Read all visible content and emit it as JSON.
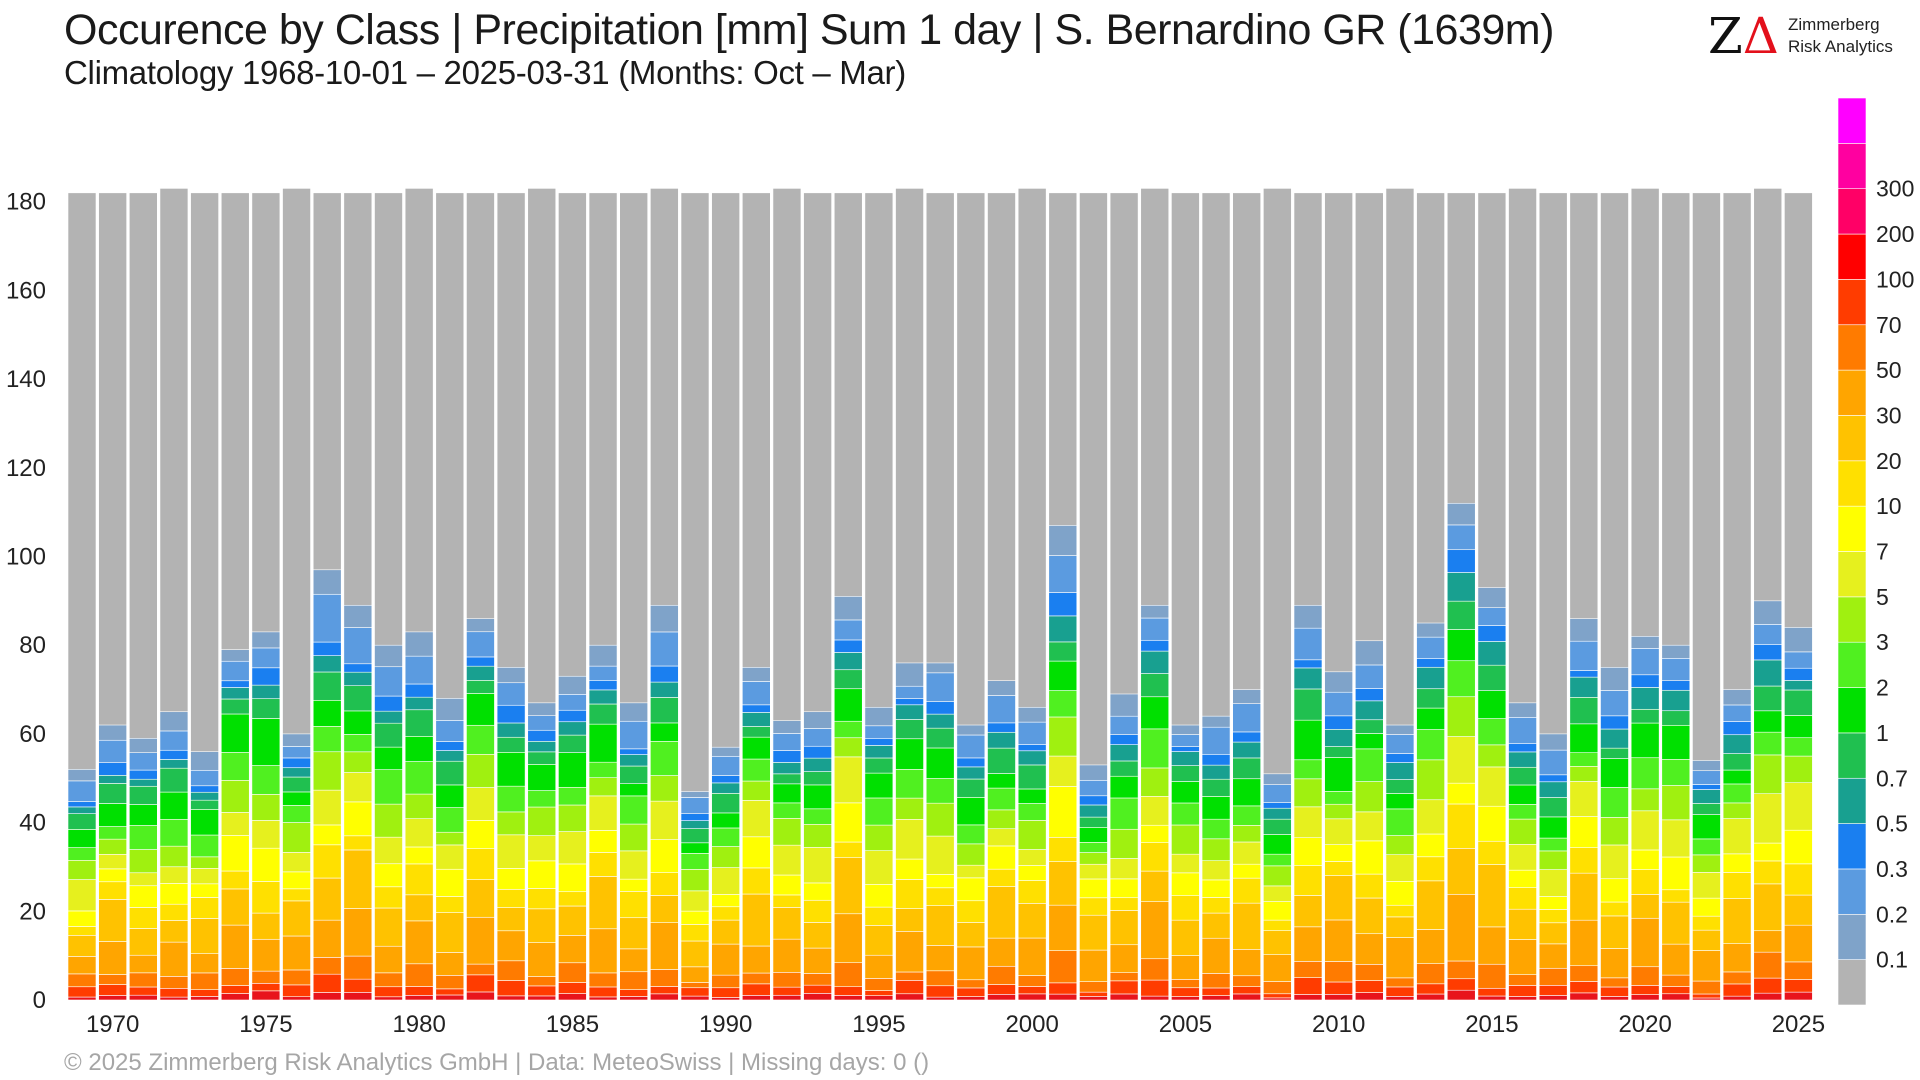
{
  "header": {
    "title": "Occurence by Class | Precipitation [mm] Sum 1 day | S. Bernardino  GR (1639m)",
    "subtitle": "Climatology 1968-10-01 – 2025-03-31 (Months: Oct – Mar)"
  },
  "logo": {
    "mark": "ZΔ",
    "line1": "Zimmerberg",
    "line2": "Risk Analytics"
  },
  "footer": {
    "text": "©  2025 Zimmerberg Risk Analytics GmbH | Data: MeteoSwiss | Missing days: 0 ()"
  },
  "colors": {
    "background_bar": "#b3b3b3",
    "axis_text": "#222222"
  },
  "chart_data": {
    "type": "bar",
    "stacked": true,
    "x": [
      1969,
      1970,
      1971,
      1972,
      1973,
      1974,
      1975,
      1976,
      1977,
      1978,
      1979,
      1980,
      1981,
      1982,
      1983,
      1984,
      1985,
      1986,
      1987,
      1988,
      1989,
      1990,
      1991,
      1992,
      1993,
      1994,
      1995,
      1996,
      1997,
      1998,
      1999,
      2000,
      2001,
      2002,
      2003,
      2004,
      2005,
      2006,
      2007,
      2008,
      2009,
      2010,
      2011,
      2012,
      2013,
      2014,
      2015,
      2016,
      2017,
      2018,
      2019,
      2020,
      2021,
      2022,
      2023,
      2024,
      2025
    ],
    "x_ticks": [
      1970,
      1975,
      1980,
      1985,
      1990,
      1995,
      2000,
      2005,
      2010,
      2015,
      2020,
      2025
    ],
    "ylim": [
      0,
      183
    ],
    "y_ticks": [
      0,
      20,
      40,
      60,
      80,
      100,
      120,
      140,
      160,
      180
    ],
    "total_days": [
      182,
      182,
      182,
      183,
      182,
      182,
      182,
      183,
      182,
      182,
      182,
      183,
      182,
      182,
      182,
      183,
      182,
      182,
      182,
      183,
      182,
      182,
      182,
      183,
      182,
      182,
      182,
      183,
      182,
      182,
      182,
      183,
      182,
      182,
      182,
      183,
      182,
      182,
      182,
      183,
      182,
      182,
      182,
      183,
      182,
      182,
      182,
      183,
      182,
      182,
      182,
      183,
      182,
      182,
      182,
      183,
      182
    ],
    "wet_days": [
      52,
      62,
      59,
      65,
      56,
      79,
      83,
      60,
      97,
      89,
      80,
      83,
      68,
      86,
      75,
      67,
      73,
      80,
      67,
      89,
      47,
      57,
      75,
      63,
      65,
      91,
      66,
      76,
      76,
      62,
      72,
      66,
      107,
      53,
      69,
      89,
      62,
      64,
      70,
      51,
      89,
      74,
      81,
      62,
      85,
      112,
      93,
      67,
      60,
      86,
      75,
      82,
      80,
      54,
      70,
      90,
      84
    ],
    "legend_classes": [
      "0.1",
      "0.2",
      "0.3",
      "0.5",
      "0.7",
      "1",
      "2",
      "3",
      "5",
      "7",
      "10",
      "20",
      "30",
      "50",
      "70",
      "100",
      "200",
      "300"
    ],
    "legend_colors": [
      "#b3b3b3",
      "#7fa3c9",
      "#5b9be0",
      "#1a7ff0",
      "#18a090",
      "#20c050",
      "#00e000",
      "#50f020",
      "#a0f010",
      "#e6f01e",
      "#ffff00",
      "#ffe000",
      "#ffc200",
      "#ffa500",
      "#ff7b00",
      "#ff3c00",
      "#ff0000",
      "#ff0066",
      "#ff00a0",
      "#ff00ff"
    ]
  }
}
